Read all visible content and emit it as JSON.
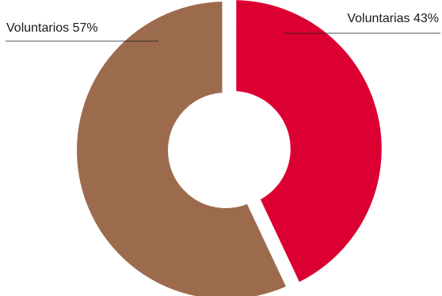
{
  "chart_data": {
    "type": "pie",
    "donut": true,
    "title": "",
    "series": [
      {
        "categories": [
          "Voluntarias",
          "Voluntarios"
        ],
        "values": [
          43,
          57
        ],
        "labels": [
          "Voluntarias 43%",
          "Voluntarios 57%"
        ],
        "colors": [
          "#dc0032",
          "#9c6b4e"
        ]
      }
    ],
    "legend": "none",
    "grid": false
  }
}
